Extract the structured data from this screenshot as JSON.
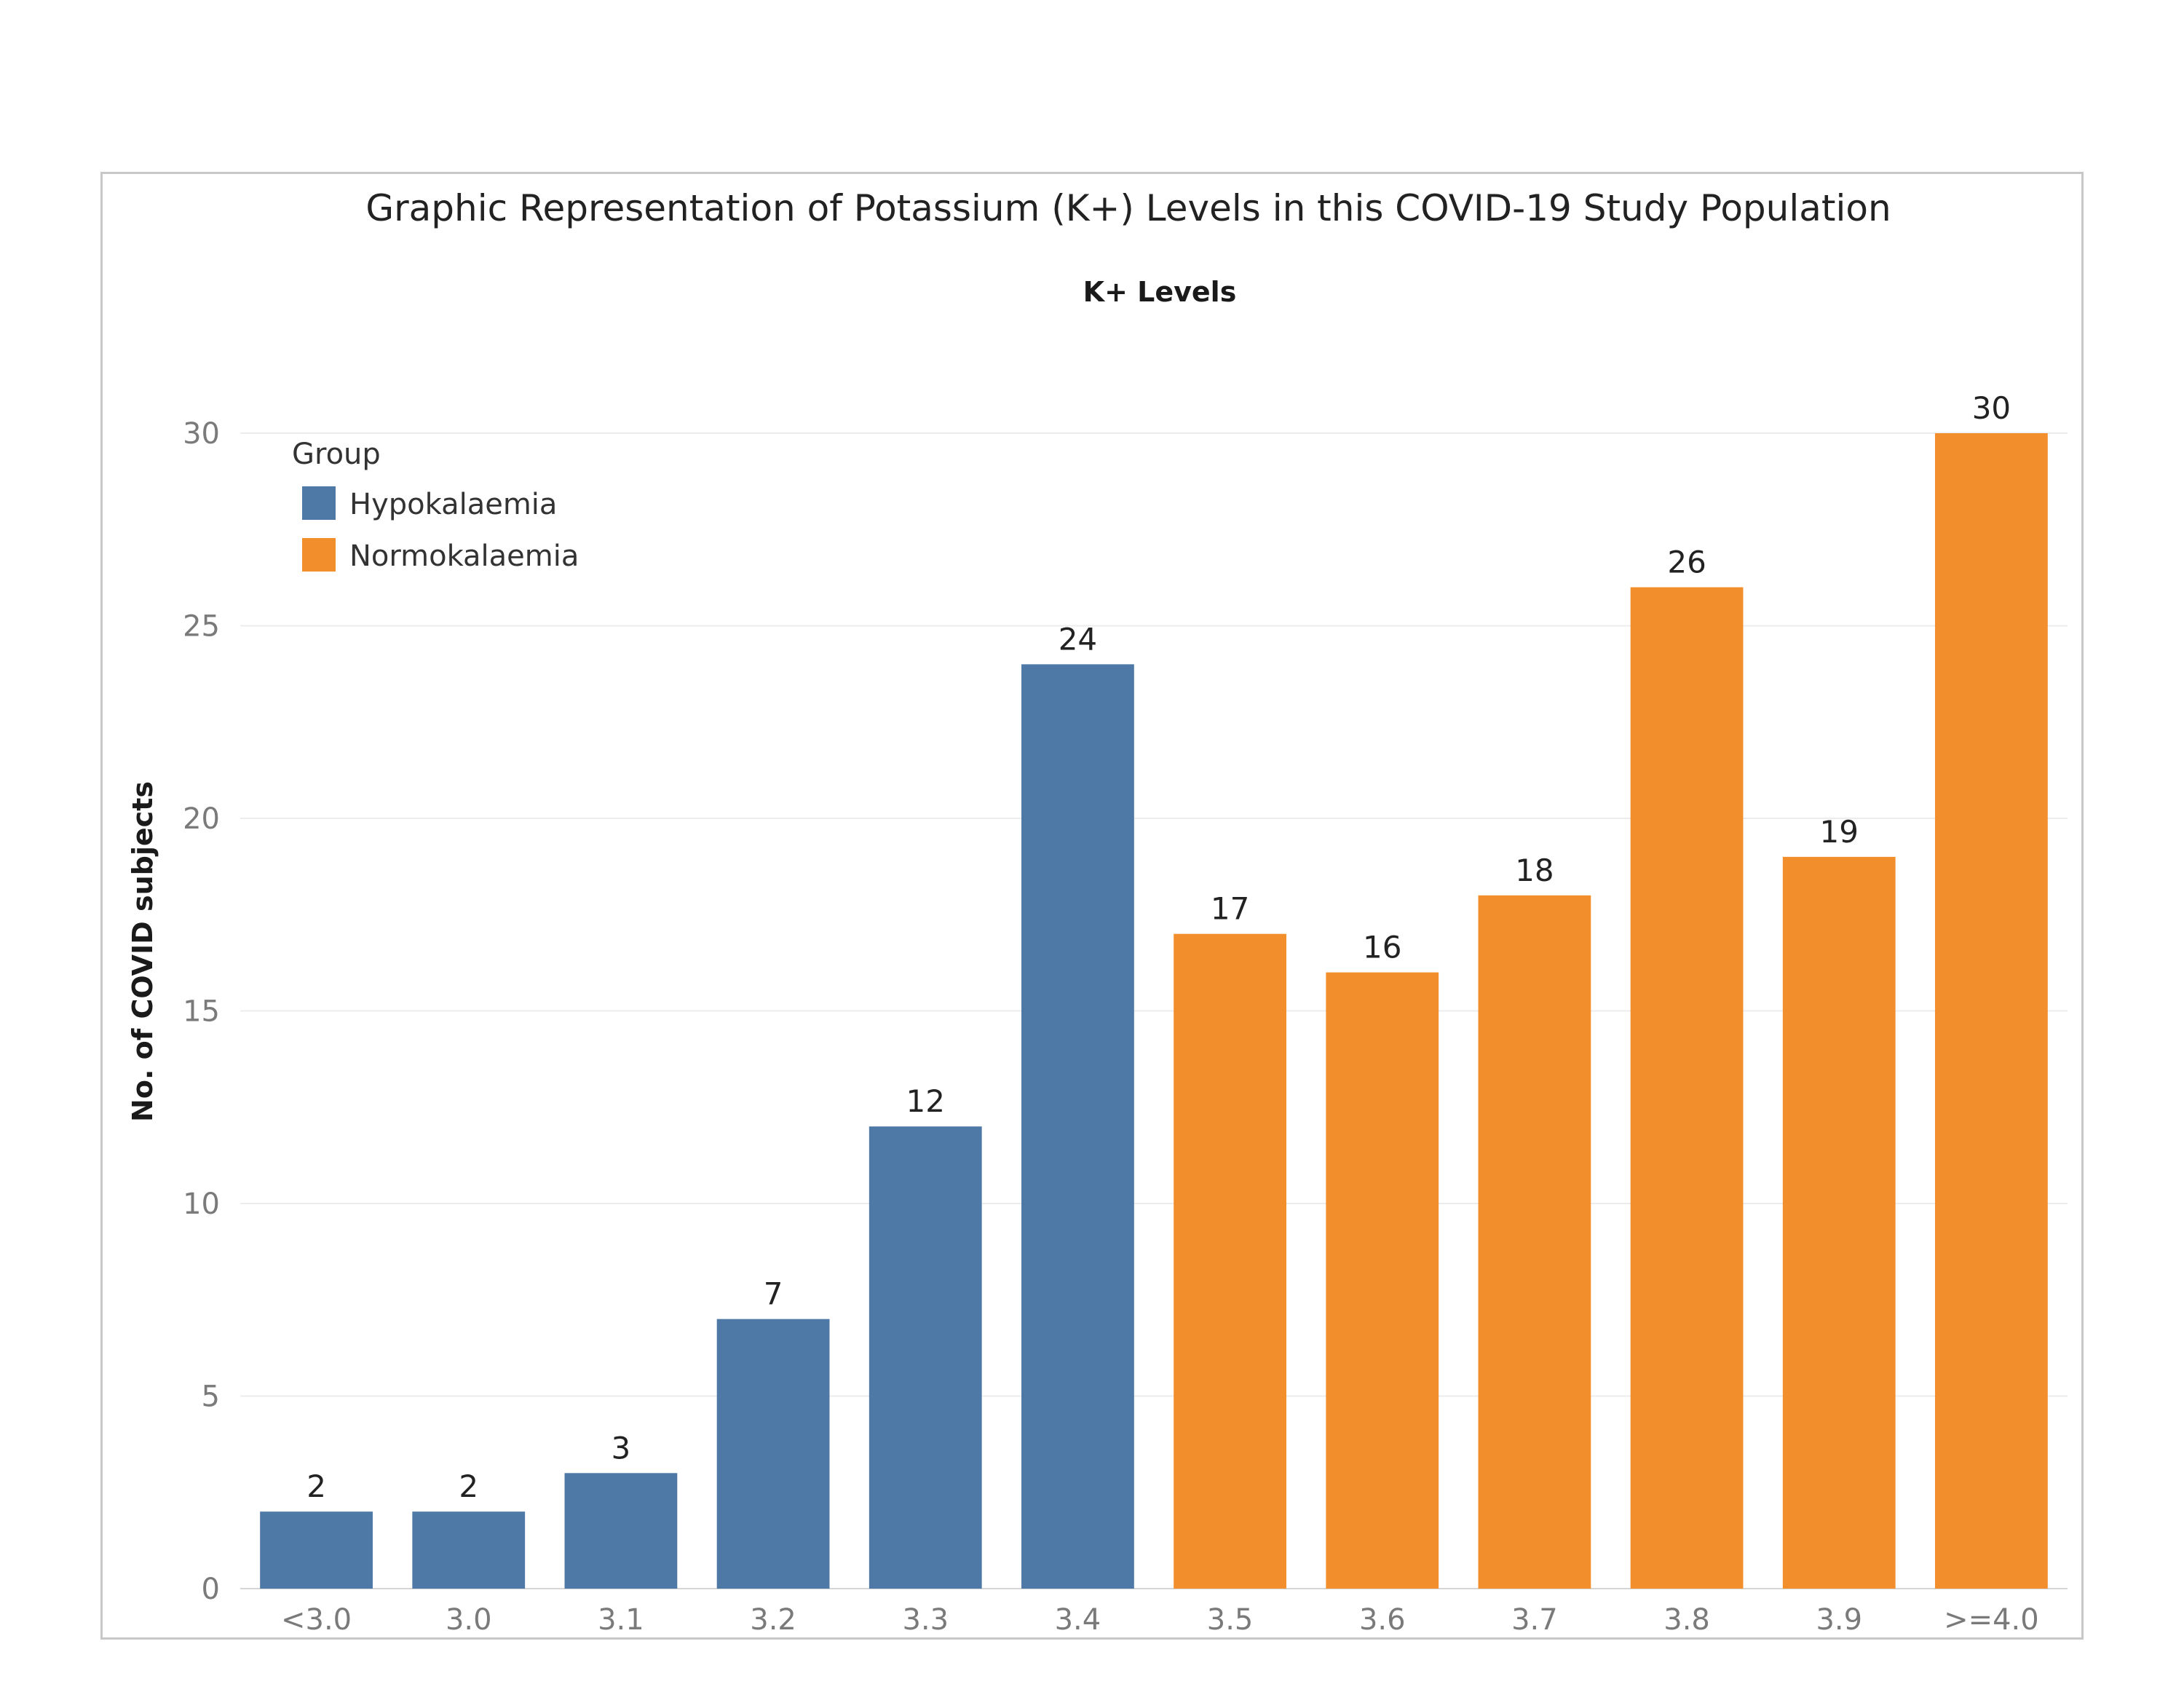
{
  "chart_data": {
    "type": "bar",
    "title": "Graphic Representation of Potassium (K+) Levels in this COVID-19 Study Population",
    "subtitle": "K+ Levels",
    "xlabel": "K+ Levels",
    "ylabel": "No. of COVID subjects",
    "ylim": [
      0,
      32
    ],
    "yticks": [
      0,
      5,
      10,
      15,
      20,
      25,
      30
    ],
    "grid": true,
    "legend_position": "top-left",
    "legend": {
      "title": "Group",
      "entries": [
        {
          "name": "Hypokalaemia",
          "color": "#4e79a7"
        },
        {
          "name": "Normokalaemia",
          "color": "#f28e2b"
        }
      ]
    },
    "categories": [
      "<3.0",
      "3.0",
      "3.1",
      "3.2",
      "3.3",
      "3.4",
      "3.5",
      "3.6",
      "3.7",
      "3.8",
      "3.9",
      ">=4.0"
    ],
    "values": [
      2,
      2,
      3,
      7,
      12,
      24,
      17,
      16,
      18,
      26,
      19,
      30
    ],
    "groups": [
      "Hypokalaemia",
      "Hypokalaemia",
      "Hypokalaemia",
      "Hypokalaemia",
      "Hypokalaemia",
      "Hypokalaemia",
      "Normokalaemia",
      "Normokalaemia",
      "Normokalaemia",
      "Normokalaemia",
      "Normokalaemia",
      "Normokalaemia"
    ]
  },
  "colors": {
    "hypokalaemia": "#4e79a7",
    "normokalaemia": "#f28e2b",
    "gridline": "#ececec",
    "frame": "#c8c8c8"
  }
}
